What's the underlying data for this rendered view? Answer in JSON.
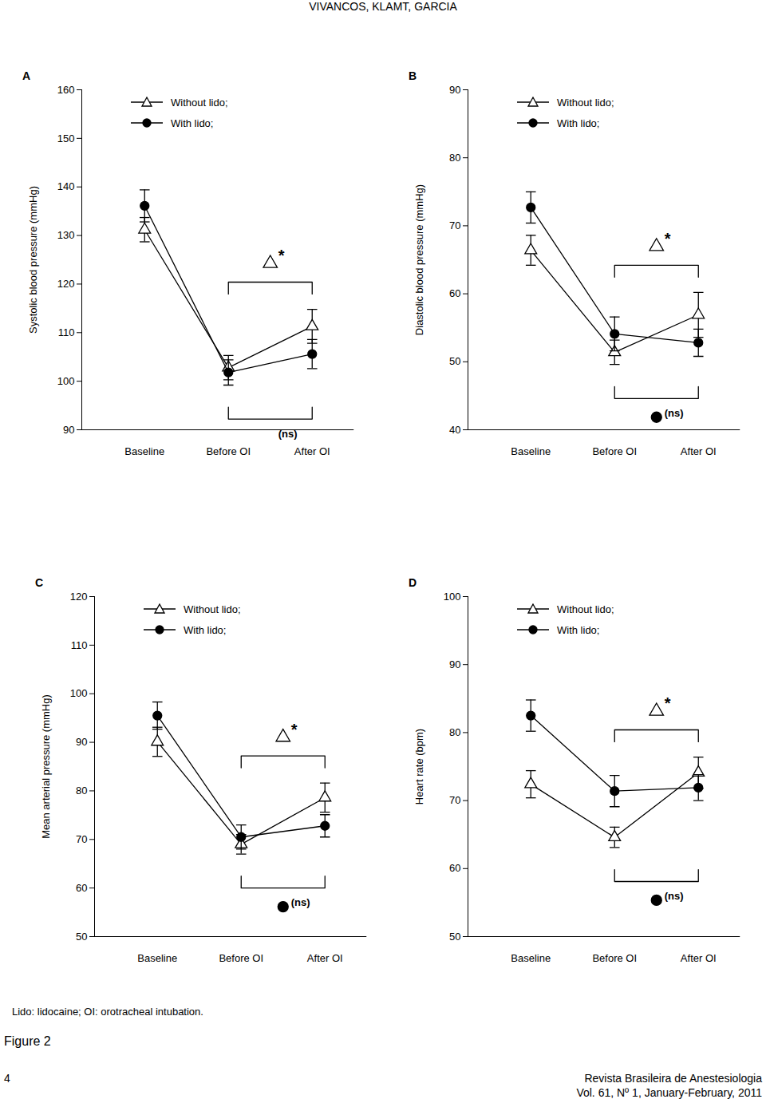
{
  "header": "VIVANCOS, KLAMT, GARCIA",
  "chart_data": [
    {
      "type": "line",
      "title": "A",
      "categories": [
        "Baseline",
        "Before OI",
        "After OI"
      ],
      "y_label": "Systolic blood pressure (mmHg)",
      "ylim": [
        90,
        160
      ],
      "yticks": [
        90,
        100,
        110,
        120,
        130,
        140,
        150,
        160
      ],
      "legend": "top",
      "series": [
        {
          "name": "Without lido;",
          "color": "#000000",
          "marker": "open-triangle",
          "values": [
            131.2,
            102.8,
            111.3
          ],
          "errors": [
            2.5,
            2.5,
            3.5
          ]
        },
        {
          "name": "With lido;",
          "color": "#000000",
          "marker": "filled-circle",
          "values": [
            136.1,
            101.8,
            105.6
          ],
          "errors": [
            3.3,
            2.6,
            3.0
          ]
        }
      ],
      "annotations": [
        {
          "series": "Without lido;",
          "text": "*",
          "position": "above"
        },
        {
          "series": "With lido;",
          "text": "(ns)",
          "position": "below"
        }
      ]
    },
    {
      "type": "line",
      "title": "B",
      "categories": [
        "Baseline",
        "Before OI",
        "After OI"
      ],
      "y_label": "Diastolic blood pressure (mmHg)",
      "ylim": [
        40,
        90
      ],
      "yticks": [
        40,
        50,
        60,
        70,
        80,
        90
      ],
      "legend": "top",
      "series": [
        {
          "name": "Without lido;",
          "color": "#000000",
          "marker": "open-triangle",
          "values": [
            66.4,
            51.4,
            56.9
          ],
          "errors": [
            2.2,
            1.8,
            3.3
          ]
        },
        {
          "name": "With lido;",
          "color": "#000000",
          "marker": "filled-circle",
          "values": [
            72.7,
            54.1,
            52.8
          ],
          "errors": [
            2.3,
            2.5,
            2.0
          ]
        }
      ],
      "annotations": [
        {
          "series": "Without lido;",
          "text": "*",
          "position": "above"
        },
        {
          "series": "With lido;",
          "text": "(ns)",
          "position": "below"
        }
      ]
    },
    {
      "type": "line",
      "title": "C",
      "categories": [
        "Baseline",
        "Before OI",
        "After OI"
      ],
      "y_label": "Mean arterial pressure (mmHg)",
      "ylim": [
        50,
        120
      ],
      "yticks": [
        50,
        60,
        70,
        80,
        90,
        100,
        110,
        120
      ],
      "legend": "top",
      "series": [
        {
          "name": "Without lido;",
          "color": "#000000",
          "marker": "open-triangle",
          "values": [
            90.1,
            69.0,
            78.6
          ],
          "errors": [
            3.0,
            2.0,
            3.0
          ]
        },
        {
          "name": "With lido;",
          "color": "#000000",
          "marker": "filled-circle",
          "values": [
            95.5,
            70.5,
            72.8
          ],
          "errors": [
            2.8,
            2.5,
            2.3
          ]
        }
      ],
      "annotations": [
        {
          "series": "Without lido;",
          "text": "*",
          "position": "above"
        },
        {
          "series": "With lido;",
          "text": "(ns)",
          "position": "below"
        }
      ]
    },
    {
      "type": "line",
      "title": "D",
      "categories": [
        "Baseline",
        "Before OI",
        "After OI"
      ],
      "y_label": "Heart rate (bpm)",
      "ylim": [
        50,
        100
      ],
      "yticks": [
        50,
        60,
        70,
        80,
        90,
        100
      ],
      "legend": "top",
      "series": [
        {
          "name": "Without lido;",
          "color": "#000000",
          "marker": "open-triangle",
          "values": [
            72.4,
            64.6,
            74.1
          ],
          "errors": [
            2.0,
            1.5,
            2.3
          ]
        },
        {
          "name": "With lido;",
          "color": "#000000",
          "marker": "filled-circle",
          "values": [
            82.5,
            71.4,
            71.9
          ],
          "errors": [
            2.3,
            2.3,
            1.9
          ]
        }
      ],
      "annotations": [
        {
          "series": "Without lido;",
          "text": "*",
          "position": "above"
        },
        {
          "series": "With lido;",
          "text": "(ns)",
          "position": "below"
        }
      ]
    }
  ],
  "caption": "Lido: lidocaine; OI: orotracheal intubation.",
  "figure_label": "Figure 2",
  "page_number": 4,
  "journal": "Revista Brasileira de Anestesiologia",
  "volume": "Vol. 61, Nº 1, January-February, 2011"
}
